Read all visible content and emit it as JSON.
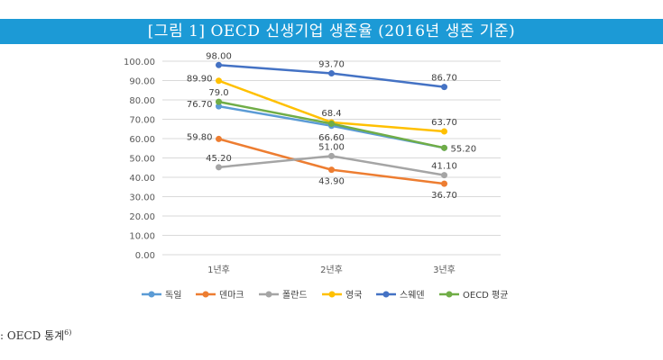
{
  "figure_title": "[그림 1] OECD 신생기업 생존율 (2016년 생존 기준)",
  "source_text": ": OECD 통계",
  "source_note": "6)",
  "chart_data": {
    "type": "line",
    "categories": [
      "1년후",
      "2년후",
      "3년후"
    ],
    "ylim": [
      0,
      100
    ],
    "yticks": [
      "0.00",
      "10.00",
      "20.00",
      "30.00",
      "40.00",
      "50.00",
      "60.00",
      "70.00",
      "80.00",
      "90.00",
      "100.00"
    ],
    "grid": true,
    "legend_position": "bottom",
    "series": [
      {
        "name": "독일",
        "color": "#5b9bd5",
        "values": [
          76.7,
          66.6,
          55.2
        ],
        "labels": [
          "76.70",
          "66.60",
          ""
        ],
        "label_pos": [
          "left",
          "below",
          "none"
        ]
      },
      {
        "name": "덴마크",
        "color": "#ed7d31",
        "values": [
          59.8,
          43.9,
          36.7
        ],
        "labels": [
          "59.80",
          "43.90",
          "36.70"
        ],
        "label_pos": [
          "left",
          "below",
          "below"
        ]
      },
      {
        "name": "폴란드",
        "color": "#a5a5a5",
        "values": [
          45.2,
          51.0,
          41.1
        ],
        "labels": [
          "45.20",
          "51.00",
          "41.10"
        ],
        "label_pos": [
          "above",
          "above",
          "above"
        ]
      },
      {
        "name": "영국",
        "color": "#ffc000",
        "values": [
          89.9,
          68.4,
          63.7
        ],
        "labels": [
          "89.90",
          "68.4",
          "63.70"
        ],
        "label_pos": [
          "left",
          "above",
          "above"
        ]
      },
      {
        "name": "스웨덴",
        "color": "#4472c4",
        "values": [
          98.0,
          93.7,
          86.7
        ],
        "labels": [
          "98.00",
          "93.70",
          "86.70"
        ],
        "label_pos": [
          "above",
          "above",
          "above"
        ]
      },
      {
        "name": "OECD 평균",
        "color": "#70ad47",
        "values": [
          79.0,
          67.7,
          55.2
        ],
        "labels": [
          "79.0",
          "",
          "55.20"
        ],
        "label_pos": [
          "above",
          "none",
          "right"
        ]
      }
    ]
  }
}
